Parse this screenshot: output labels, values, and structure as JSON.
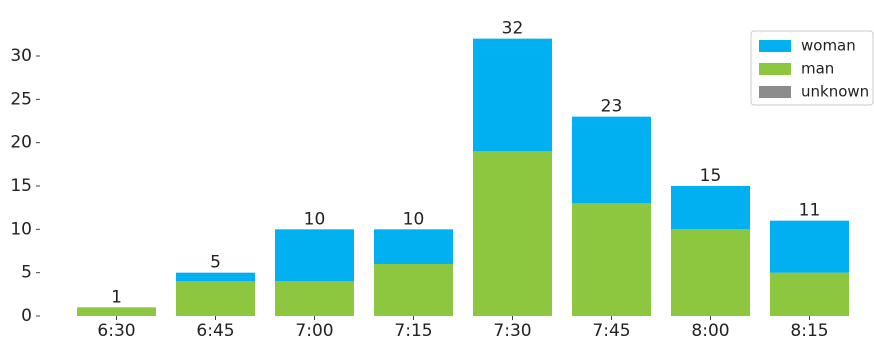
{
  "chart_data": {
    "type": "stacked_bar",
    "categories": [
      "6:30",
      "6:45",
      "7:00",
      "7:15",
      "7:30",
      "7:45",
      "8:00",
      "8:15"
    ],
    "series": [
      {
        "name": "woman",
        "color": "#00b0f0",
        "values": [
          0,
          1,
          6,
          4,
          13,
          10,
          5,
          6
        ]
      },
      {
        "name": "man",
        "color": "#8dc63f",
        "values": [
          1,
          4,
          4,
          6,
          19,
          13,
          10,
          5
        ]
      },
      {
        "name": "unknown",
        "color": "#8c8c8c",
        "values": [
          0,
          0,
          0,
          0,
          0,
          0,
          0,
          0
        ]
      }
    ],
    "totals": [
      1,
      5,
      10,
      10,
      32,
      23,
      15,
      11
    ],
    "ylim": [
      0,
      33
    ],
    "yticks": [
      0,
      5,
      10,
      15,
      20,
      25,
      30
    ],
    "legend": "top-right"
  }
}
